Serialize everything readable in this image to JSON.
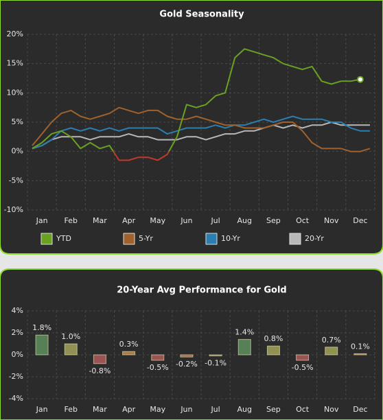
{
  "chart_data": [
    {
      "type": "line",
      "title": "Gold Seasonality",
      "categories": [
        null,
        "Jan",
        null,
        null,
        "Feb",
        null,
        null,
        "Mar",
        null,
        null,
        "Apr",
        null,
        null,
        "May",
        null,
        null,
        "Jun",
        null,
        null,
        "Jul",
        null,
        null,
        "Aug",
        null,
        null,
        "Sep",
        null,
        null,
        "Oct",
        null,
        null,
        "Nov",
        null,
        null,
        "Dec",
        null
      ],
      "series": [
        {
          "name": "YTD",
          "color": "#6aa121",
          "negative_color": "#c0392b",
          "values": [
            0.5,
            1.5,
            3.0,
            3.5,
            2.5,
            0.5,
            1.5,
            0.5,
            1.0,
            -1.5,
            -1.5,
            -1.0,
            -1.0,
            -1.5,
            -0.5,
            2.5,
            8.0,
            7.5,
            8.0,
            9.5,
            10.0,
            16.0,
            17.5,
            17.0,
            16.5,
            16.0,
            15.0,
            14.5,
            14.0,
            14.5,
            12.0,
            11.5,
            12.0,
            12.0,
            12.3,
            null
          ]
        },
        {
          "name": "5-Yr",
          "color": "#a0622d",
          "values": [
            1,
            3,
            5,
            6.5,
            7,
            6,
            5.5,
            6,
            6.5,
            7.5,
            7,
            6.5,
            7,
            7,
            6,
            5.5,
            5.5,
            6,
            5.5,
            5,
            4.5,
            4.5,
            4,
            4,
            4,
            4.5,
            5,
            5,
            3.5,
            1.5,
            0.5,
            0.5,
            0.5,
            0,
            0,
            0.5
          ]
        },
        {
          "name": "10-Yr",
          "color": "#2a7fb0",
          "values": [
            0.5,
            1,
            2,
            3.5,
            4,
            3.5,
            4,
            3.5,
            4,
            3.5,
            4,
            4,
            4,
            4,
            3,
            3.5,
            4,
            4,
            4,
            4.5,
            4,
            4.5,
            4.5,
            5,
            5.5,
            5,
            5.5,
            6,
            5.5,
            5.5,
            5.5,
            5,
            5,
            4,
            3.5,
            3.5
          ]
        },
        {
          "name": "20-Yr",
          "color": "#b8b8b8",
          "values": [
            0.5,
            1,
            2,
            2.5,
            2.5,
            2.5,
            2,
            2.5,
            2.5,
            2.5,
            3,
            2.5,
            2.5,
            2,
            2,
            2,
            2.5,
            2.5,
            2,
            2.5,
            3,
            3,
            3.5,
            3.5,
            4,
            4.5,
            4,
            4.5,
            4,
            4.5,
            4.5,
            5,
            4.5,
            4.5,
            4.5,
            4.5
          ]
        }
      ],
      "ylim": [
        -10,
        20
      ],
      "yticks": [
        {
          "value": -10,
          "label": "-10%"
        },
        {
          "value": -5,
          "label": "-5%"
        },
        {
          "value": 0,
          "label": "0%"
        },
        {
          "value": 5,
          "label": "5%"
        },
        {
          "value": 10,
          "label": "10%"
        },
        {
          "value": 15,
          "label": "15%"
        },
        {
          "value": 20,
          "label": "20%"
        }
      ],
      "grid": true,
      "end_marker": true,
      "legend": "bottom"
    },
    {
      "type": "bar",
      "title": "20-Year Avg Performance for Gold",
      "categories": [
        "Jan",
        "Feb",
        "Mar",
        "Apr",
        "May",
        "Jun",
        "Jul",
        "Aug",
        "Sep",
        "Oct",
        "Nov",
        "Dec"
      ],
      "values": [
        1.8,
        1.0,
        -0.8,
        0.3,
        -0.5,
        -0.2,
        -0.1,
        1.4,
        0.8,
        -0.5,
        0.7,
        0.1
      ],
      "value_labels": [
        "1.8%",
        "1.0%",
        "-0.8%",
        "0.3%",
        "-0.5%",
        "-0.2%",
        "-0.1%",
        "1.4%",
        "0.8%",
        "-0.5%",
        "0.7%",
        "0.1%"
      ],
      "colors": [
        "#5f8f5f",
        "#a3a35c",
        "#b05a5a",
        "#c08a50",
        "#b05a5a",
        "#c0704a",
        "#c0704a",
        "#5f8f5f",
        "#a3a35c",
        "#b05a5a",
        "#a3a35c",
        "#c08a50"
      ],
      "ylim": [
        -4,
        4
      ],
      "yticks": [
        {
          "value": -4,
          "label": "-4%"
        },
        {
          "value": -2,
          "label": "-2%"
        },
        {
          "value": 0,
          "label": "0%"
        },
        {
          "value": 2,
          "label": "2%"
        },
        {
          "value": 4,
          "label": "4%"
        }
      ],
      "grid": true
    }
  ]
}
